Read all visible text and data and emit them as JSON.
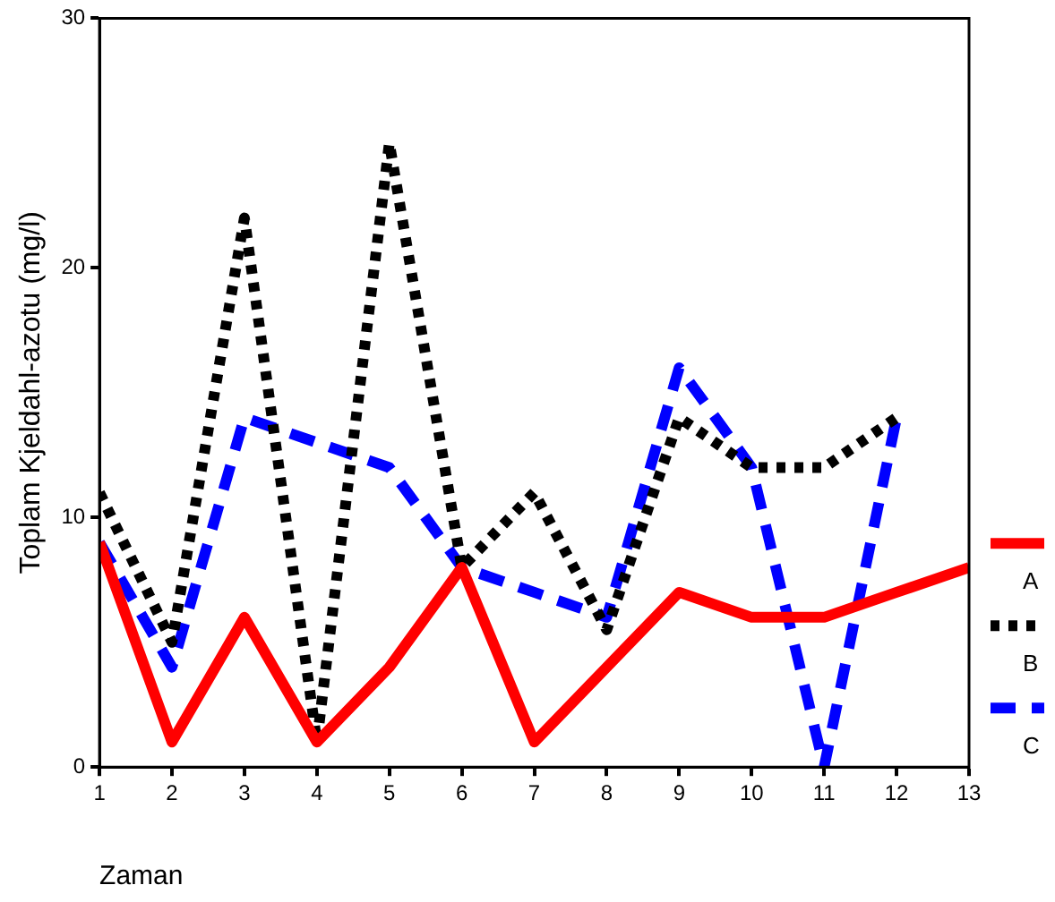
{
  "chart_data": {
    "type": "line",
    "xlabel": "Zaman",
    "ylabel": "Toplam Kjeldahl-azotu (mg/l)",
    "x": [
      1,
      2,
      3,
      4,
      5,
      6,
      7,
      8,
      9,
      10,
      11,
      12,
      13
    ],
    "xlim": [
      1,
      13
    ],
    "xticks": [
      1,
      2,
      3,
      4,
      5,
      6,
      7,
      8,
      9,
      10,
      11,
      12,
      13
    ],
    "ylim": [
      0,
      30
    ],
    "yticks": [
      0,
      10,
      20,
      30
    ],
    "grid": false,
    "legend": "right",
    "marker": "none",
    "series": [
      {
        "name": "A",
        "color": "#ff0000",
        "line_style": "solid",
        "values": [
          9,
          1,
          6,
          1,
          4,
          8,
          1,
          4,
          7,
          6,
          6,
          7,
          8
        ]
      },
      {
        "name": "B",
        "color": "#000000",
        "line_style": "dotted",
        "values": [
          11,
          5,
          22,
          1,
          25,
          8,
          11,
          5.5,
          14,
          12,
          12,
          14,
          null
        ]
      },
      {
        "name": "C",
        "color": "#0000ff",
        "line_style": "dashed",
        "values": [
          9,
          4,
          14,
          13,
          12,
          8,
          7,
          6,
          16,
          12,
          0,
          14,
          null
        ]
      }
    ]
  }
}
